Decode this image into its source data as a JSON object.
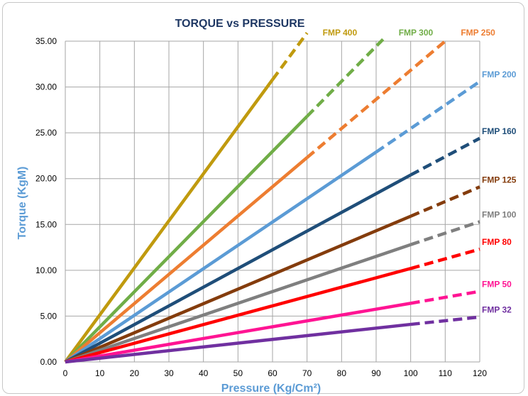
{
  "chart_data": {
    "type": "line",
    "title": "TORQUE vs PRESSURE",
    "xlabel": "Pressure (Kg/Cm²)",
    "ylabel": "Torque (KgM)",
    "xlim": [
      0,
      120
    ],
    "ylim": [
      0,
      35
    ],
    "xticks": [
      "0",
      "10",
      "20",
      "30",
      "40",
      "50",
      "60",
      "70",
      "80",
      "90",
      "100",
      "110",
      "120"
    ],
    "yticks": [
      "0.00",
      "5.00",
      "10.00",
      "15.00",
      "20.00",
      "25.00",
      "30.00",
      "35.00"
    ],
    "grid": true,
    "series": [
      {
        "name": "FMP 400",
        "color": "#c09a0e",
        "x": [
          0,
          60,
          70
        ],
        "y": [
          0,
          30.8,
          35.9
        ],
        "solid_to": 60
      },
      {
        "name": "FMP 300",
        "color": "#70ad47",
        "x": [
          0,
          70,
          92
        ],
        "y": [
          0,
          26.8,
          35.2
        ],
        "solid_to": 70
      },
      {
        "name": "FMP 250",
        "color": "#ed7d31",
        "x": [
          0,
          70,
          110
        ],
        "y": [
          0,
          22.3,
          35.0
        ],
        "solid_to": 70
      },
      {
        "name": "FMP 200",
        "color": "#5b9bd5",
        "x": [
          0,
          90,
          120
        ],
        "y": [
          0,
          22.9,
          30.6
        ],
        "solid_to": 90
      },
      {
        "name": "FMP 160",
        "color": "#1f4e79",
        "x": [
          0,
          100,
          120
        ],
        "y": [
          0,
          20.4,
          24.4
        ],
        "solid_to": 100
      },
      {
        "name": "FMP 125",
        "color": "#843c0c",
        "x": [
          0,
          100,
          120
        ],
        "y": [
          0,
          15.9,
          19.1
        ],
        "solid_to": 100
      },
      {
        "name": "FMP 100",
        "color": "#7f7f7f",
        "x": [
          0,
          100,
          120
        ],
        "y": [
          0,
          12.8,
          15.3
        ],
        "solid_to": 100
      },
      {
        "name": "FMP 80",
        "color": "#ff0000",
        "x": [
          0,
          100,
          120
        ],
        "y": [
          0,
          10.2,
          12.3
        ],
        "solid_to": 100
      },
      {
        "name": "FMP 50",
        "color": "#ff1493",
        "x": [
          0,
          100,
          120
        ],
        "y": [
          0,
          6.4,
          7.7
        ],
        "solid_to": 100
      },
      {
        "name": "FMP 32",
        "color": "#7030a0",
        "x": [
          0,
          100,
          120
        ],
        "y": [
          0,
          4.1,
          4.9
        ],
        "solid_to": 100
      }
    ]
  }
}
